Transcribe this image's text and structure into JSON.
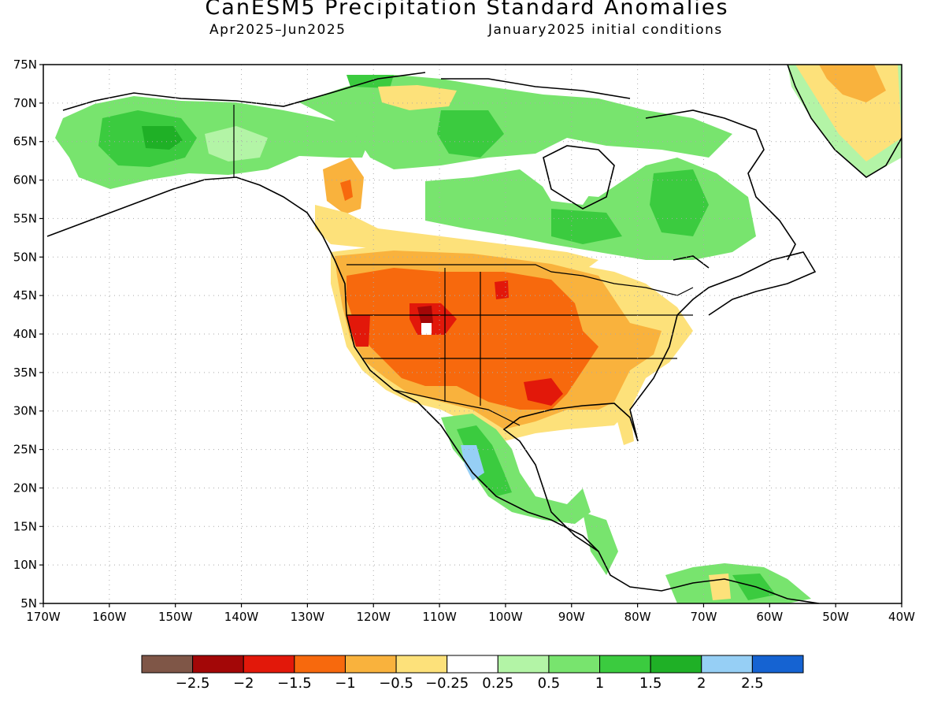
{
  "title": "CanESM5 Precipitation Standard Anomalies",
  "subtitle_left": "Apr2025–Jun2025",
  "subtitle_right": "January2025 initial conditions",
  "map": {
    "lon_range": [
      -170,
      -40
    ],
    "lat_range": [
      5,
      75
    ],
    "lon_ticks": [
      "170W",
      "160W",
      "150W",
      "140W",
      "130W",
      "120W",
      "110W",
      "100W",
      "90W",
      "80W",
      "70W",
      "60W",
      "50W",
      "40W"
    ],
    "lat_ticks": [
      "5N",
      "10N",
      "15N",
      "20N",
      "25N",
      "30N",
      "35N",
      "40N",
      "45N",
      "50N",
      "55N",
      "60N",
      "65N",
      "70N",
      "75N"
    ],
    "gridlines": "dotted"
  },
  "colorbar": {
    "colors": [
      "#7f5647",
      "#a30707",
      "#e2180a",
      "#f7690d",
      "#f9b23d",
      "#fde17a",
      "#ffffff",
      "#b3f4a6",
      "#78e46e",
      "#3bcb3f",
      "#1fb026",
      "#96cff5",
      "#1563d2"
    ],
    "labels": [
      "−2.5",
      "−2",
      "−1.5",
      "−1",
      "−0.5",
      "−0.25",
      "0.25",
      "0.5",
      "1",
      "1.5",
      "2",
      "2.5"
    ]
  },
  "palette": {
    "brown": "#7f5647",
    "darkred": "#a30707",
    "red": "#e2180a",
    "orange": "#f7690d",
    "lightorange": "#f9b23d",
    "yellow": "#fde17a",
    "lightgreen": "#b3f4a6",
    "green": "#78e46e",
    "medgreen": "#3bcb3f",
    "darkgreen": "#1fb026",
    "lightblue": "#96cff5",
    "blue": "#1563d2"
  }
}
